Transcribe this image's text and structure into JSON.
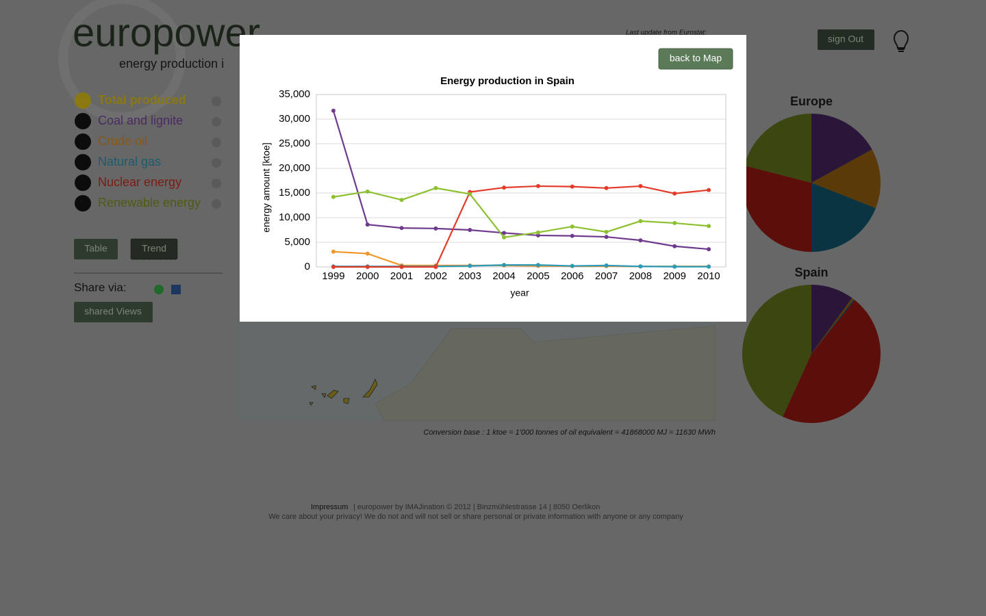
{
  "header": {
    "logo": "europower",
    "tagline": "energy production i",
    "update": "Last update from Eurostat:",
    "sign_out": "sign Out"
  },
  "sidebar": {
    "items": [
      "Total produced",
      "Coal and lignite",
      "Crude oil",
      "Natural gas",
      "Nuclear energy",
      "Renewable energy"
    ],
    "table": "Table",
    "trend": "Trend",
    "share": "Share via:",
    "shared_views": "shared Views"
  },
  "conversion": "Conversion base : 1 ktoe = 1'000 tonnes of oil equivalent = 41868000 MJ = 11630 MWh",
  "footer": {
    "impressum": "Impressum",
    "credits": " | europower by IMAJination © 2012 | Binzmühlestrasse 14 | 8050 Oerlikon",
    "privacy": "We care about your privacy! We do not and will not sell or share personal or private information with anyone or any company"
  },
  "modal": {
    "back": "back to Map"
  },
  "chart_data": [
    {
      "type": "line",
      "title": "Energy production in Spain",
      "x_label": "year",
      "y_label": "energy amount [ktoe]",
      "categories": [
        "1999",
        "2000",
        "2001",
        "2002",
        "2003",
        "2004",
        "2005",
        "2006",
        "2007",
        "2008",
        "2009",
        "2010"
      ],
      "series": [
        {
          "color": "#6e3a8e",
          "values": [
            31700,
            8600,
            7900,
            7800,
            7500,
            6900,
            6400,
            6300,
            6100,
            5400,
            4200,
            3600
          ]
        },
        {
          "color": "#f0962a",
          "values": [
            3100,
            2700,
            300,
            300,
            300,
            300,
            200,
            150,
            150,
            100,
            100,
            100
          ]
        },
        {
          "color": "#2a9ab8",
          "values": [
            100,
            100,
            100,
            100,
            200,
            400,
            400,
            200,
            300,
            100,
            50,
            50
          ]
        },
        {
          "color": "#e23b2a",
          "values": [
            0,
            0,
            0,
            0,
            15200,
            16100,
            16400,
            16300,
            16000,
            16400,
            14900,
            15600
          ]
        },
        {
          "color": "#8cc02e",
          "values": [
            14200,
            15300,
            13600,
            16000,
            14800,
            6000,
            7000,
            8200,
            7100,
            9300,
            8900,
            8300
          ]
        }
      ],
      "ylim": [
        0,
        35000
      ],
      "yticks": [
        0,
        {
          "value": 5000,
          "label": "5,000"
        },
        {
          "value": 10000,
          "label": "10,000"
        },
        {
          "value": 15000,
          "label": "15,000"
        },
        {
          "value": 20000,
          "label": "20,000"
        },
        {
          "value": 25000,
          "label": "25,000"
        },
        {
          "value": 30000,
          "label": "30,000"
        },
        {
          "value": 35000,
          "label": "35,000"
        }
      ],
      "grid": true
    },
    {
      "type": "pie",
      "title": "Europe",
      "values": [
        17,
        14,
        19,
        29,
        21
      ],
      "colors": [
        "#2a1638",
        "#5a3a08",
        "#0a3442",
        "#5c0f0a",
        "#3c4610"
      ]
    },
    {
      "type": "pie",
      "title": "Spain",
      "values": [
        10,
        0.5,
        0.3,
        46,
        43.2
      ],
      "colors": [
        "#2a1638",
        "#5a3a08",
        "#0a3442",
        "#5c0f0a",
        "#3c4610"
      ]
    }
  ]
}
